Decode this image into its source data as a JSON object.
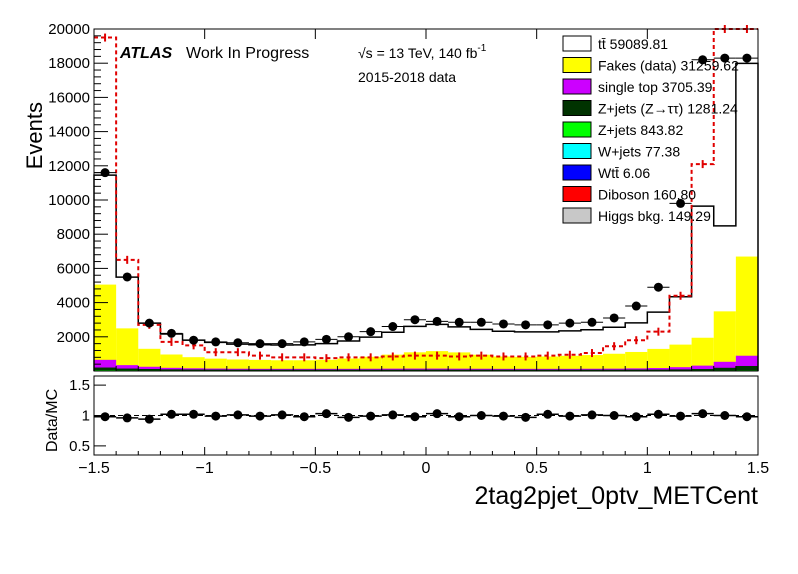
{
  "chart_data": [
    {
      "type": "area",
      "panel": "main",
      "title": "",
      "ylabel": "Events",
      "xlabel": "2tag2pjet_0ptv_METCent",
      "xlim": [
        -1.5,
        1.5
      ],
      "ylim": [
        0,
        20000
      ],
      "grid": false,
      "legend_position": "top-right",
      "stacked": true,
      "log_y": false,
      "annotations": {
        "atlas": "ATLAS",
        "status": "Work In Progress",
        "energy": "√s = 13 TeV, 140 fb",
        "energy_sup": "-1",
        "dataset": "2015-2018 data"
      },
      "x_ticks": [
        "−1.5",
        "−1",
        "−0.5",
        "0",
        "0.5",
        "1",
        "1.5"
      ],
      "x_tick_values": [
        -1.5,
        -1,
        -0.5,
        0,
        0.5,
        1,
        1.5
      ],
      "y_ticks": [
        "2000",
        "4000",
        "6000",
        "8000",
        "10000",
        "12000",
        "14000",
        "16000",
        "18000",
        "20000"
      ],
      "y_tick_values": [
        2000,
        4000,
        6000,
        8000,
        10000,
        12000,
        14000,
        16000,
        18000,
        20000
      ],
      "bin_edges": [
        -1.5,
        -1.4,
        -1.3,
        -1.2,
        -1.1,
        -1.0,
        -0.9,
        -0.8,
        -0.7,
        -0.6,
        -0.5,
        -0.4,
        -0.3,
        -0.2,
        -0.1,
        0.0,
        0.1,
        0.2,
        0.3,
        0.4,
        0.5,
        0.6,
        0.7,
        0.8,
        0.9,
        1.0,
        1.1,
        1.2,
        1.3,
        1.4,
        1.5
      ],
      "series": [
        {
          "name": "Higgs bkg. 149.29",
          "color": "#c8c8c8",
          "values": [
            5,
            5,
            5,
            5,
            5,
            5,
            5,
            5,
            5,
            5,
            5,
            5,
            5,
            5,
            5,
            5,
            5,
            5,
            5,
            5,
            5,
            5,
            5,
            5,
            5,
            5,
            5,
            5,
            5,
            5
          ]
        },
        {
          "name": "Diboson 160.80",
          "color": "#ff0000",
          "values": [
            5,
            5,
            5,
            5,
            5,
            5,
            5,
            5,
            5,
            5,
            5,
            5,
            5,
            5,
            5,
            5,
            5,
            5,
            5,
            5,
            5,
            5,
            5,
            5,
            5,
            5,
            5,
            5,
            5,
            5
          ]
        },
        {
          "name": "Wtt̄ 6.06",
          "color": "#0000ff",
          "values": [
            0,
            0,
            0,
            0,
            0,
            0,
            0,
            0,
            0,
            0,
            0,
            0,
            0,
            0,
            0,
            0,
            0,
            0,
            0,
            0,
            0,
            0,
            0,
            0,
            0,
            0,
            0,
            0,
            0,
            0
          ]
        },
        {
          "name": "W+jets 77.38",
          "color": "#00ffff",
          "values": [
            3,
            3,
            3,
            3,
            3,
            3,
            3,
            3,
            3,
            3,
            3,
            3,
            3,
            3,
            3,
            3,
            3,
            3,
            3,
            3,
            3,
            3,
            3,
            3,
            3,
            3,
            3,
            3,
            3,
            3
          ]
        },
        {
          "name": "Z+jets 843.82",
          "color": "#00ff00",
          "values": [
            40,
            30,
            25,
            22,
            20,
            20,
            20,
            20,
            20,
            20,
            20,
            20,
            20,
            20,
            20,
            20,
            20,
            20,
            20,
            20,
            20,
            20,
            20,
            20,
            20,
            20,
            20,
            22,
            25,
            30
          ]
        },
        {
          "name": "Z+jets (Z→ττ) 1281.24",
          "color": "#003300",
          "values": [
            150,
            100,
            80,
            60,
            55,
            50,
            45,
            45,
            45,
            45,
            45,
            45,
            45,
            45,
            50,
            50,
            45,
            45,
            45,
            45,
            45,
            45,
            45,
            45,
            50,
            50,
            60,
            80,
            150,
            250
          ]
        },
        {
          "name": "single top 3705.39",
          "color": "#cc00ff",
          "values": [
            450,
            200,
            130,
            90,
            70,
            60,
            55,
            50,
            50,
            50,
            50,
            50,
            55,
            60,
            60,
            60,
            60,
            55,
            50,
            50,
            50,
            50,
            55,
            60,
            70,
            90,
            130,
            200,
            350,
            600
          ]
        },
        {
          "name": "Fakes (data) 31259.62",
          "color": "#ffff00",
          "values": [
            4400,
            2150,
            1050,
            780,
            650,
            580,
            540,
            520,
            500,
            500,
            530,
            600,
            700,
            820,
            950,
            1020,
            950,
            820,
            720,
            700,
            720,
            760,
            800,
            870,
            960,
            1120,
            1320,
            1630,
            2950,
            5800
          ]
        },
        {
          "name": "tt̄ 59089.81",
          "color": "#ffffff",
          "values": [
            6400,
            3000,
            1500,
            1200,
            1000,
            950,
            900,
            890,
            890,
            900,
            940,
            1030,
            1150,
            1310,
            1520,
            1560,
            1490,
            1480,
            1480,
            1460,
            1440,
            1460,
            1480,
            1550,
            1700,
            2150,
            2800,
            7700,
            5000,
            11300
          ]
        }
      ],
      "data_points": {
        "name": "data",
        "values": [
          11600,
          5500,
          2800,
          2200,
          1800,
          1700,
          1650,
          1600,
          1600,
          1700,
          1850,
          2000,
          2300,
          2600,
          3000,
          2900,
          2850,
          2850,
          2750,
          2700,
          2700,
          2800,
          2850,
          3100,
          3800,
          4900,
          9800,
          18200,
          18300,
          18300
        ]
      },
      "signal_overlay": {
        "style": "dashed-red",
        "values": [
          19500,
          6500,
          2700,
          1700,
          1500,
          1100,
          1100,
          900,
          800,
          800,
          750,
          800,
          800,
          850,
          900,
          900,
          850,
          900,
          850,
          850,
          900,
          950,
          1050,
          1450,
          1800,
          2300,
          4400,
          12100,
          20000,
          20000
        ]
      }
    },
    {
      "type": "scatter",
      "panel": "ratio",
      "title": "",
      "ylabel": "Data/MC",
      "xlabel": "",
      "xlim": [
        -1.5,
        1.5
      ],
      "ylim": [
        0.35,
        1.65
      ],
      "y_ticks": [
        "0.5",
        "1",
        "1.5"
      ],
      "y_tick_values": [
        0.5,
        1,
        1.5
      ],
      "reference_line": 1,
      "values": [
        0.98,
        0.96,
        0.94,
        1.02,
        1.02,
        0.99,
        1.01,
        0.99,
        1.01,
        0.98,
        1.03,
        0.97,
        0.99,
        1.01,
        0.98,
        1.03,
        0.98,
        1.0,
        0.99,
        0.97,
        1.02,
        0.99,
        1.01,
        1.0,
        0.98,
        1.02,
        0.99,
        1.03,
        1.0,
        0.98
      ]
    }
  ]
}
